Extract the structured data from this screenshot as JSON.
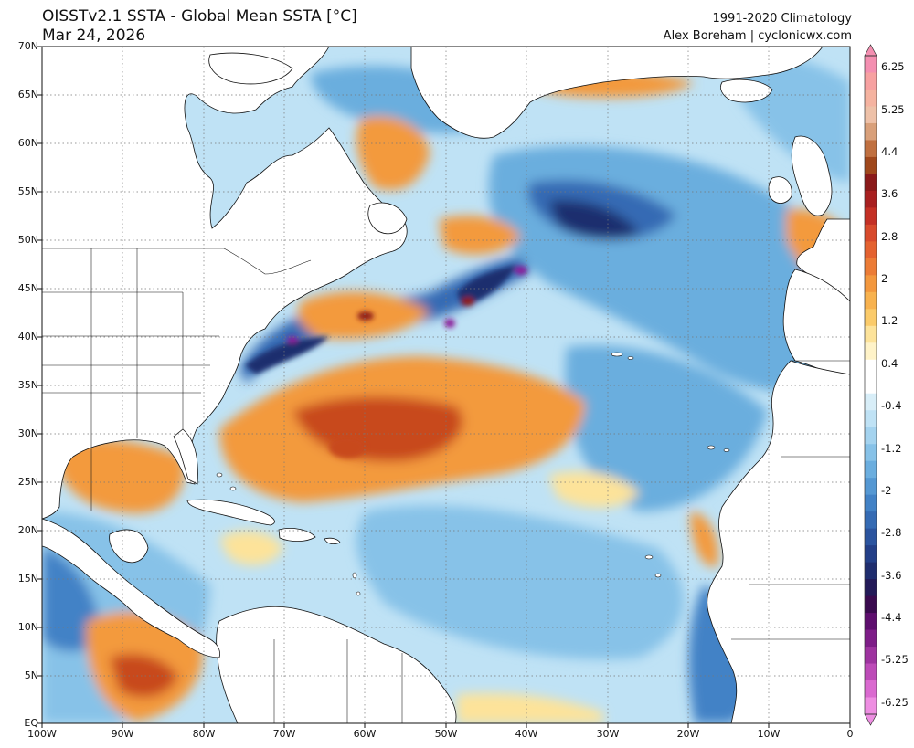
{
  "title": {
    "line1": "OISSTv2.1 SSTA - Global Mean SSTA [°C]",
    "line2": "Mar 24, 2026"
  },
  "credit": {
    "line1": "1991-2020 Climatology",
    "line2": "Alex Boreham | cyclonicwx.com"
  },
  "axes": {
    "lat_labels": [
      "70N",
      "65N",
      "60N",
      "55N",
      "50N",
      "45N",
      "40N",
      "35N",
      "30N",
      "25N",
      "20N",
      "15N",
      "10N",
      "5N",
      "EQ"
    ],
    "lon_labels": [
      "100W",
      "90W",
      "80W",
      "70W",
      "60W",
      "50W",
      "40W",
      "30W",
      "20W",
      "10W",
      "0"
    ]
  },
  "colorbar": {
    "labels": [
      "6.25",
      "5.25",
      "4.4",
      "3.6",
      "2.8",
      "2",
      "1.2",
      "0.4",
      "-0.4",
      "-1.2",
      "-2",
      "-2.8",
      "-3.6",
      "-4.4",
      "-5.25",
      "-6.25"
    ],
    "colors": [
      "#f48fb1",
      "#f7a1a1",
      "#f5b3a0",
      "#eec1a8",
      "#d9a07a",
      "#c07040",
      "#a0481c",
      "#8b1a1a",
      "#a82020",
      "#c43025",
      "#d84a2c",
      "#e46230",
      "#ec7c36",
      "#f3983e",
      "#f8b24e",
      "#fbcb6a",
      "#fde39a",
      "#fff3c8",
      "#ffffff",
      "#ffffff",
      "#d8eef8",
      "#bfe2f5",
      "#a4d3ef",
      "#87c2e8",
      "#6baedf",
      "#5598d3",
      "#4282c6",
      "#356bb4",
      "#2b549f",
      "#233f88",
      "#1f2d6e",
      "#231a58",
      "#3a0a4f",
      "#5e0e6e",
      "#7e1d88",
      "#9e33a0",
      "#bd4bb8",
      "#da6ad0",
      "#ee8ee2"
    ],
    "palette": {
      "warm_light": "#fde39a",
      "warm_mid": "#f39a3e",
      "warm_dark": "#c84a1f",
      "warm_deep": "#8e1a14",
      "cool_light": "#bfe2f5",
      "cool_mid": "#6aaede",
      "cool_dark": "#356bb4",
      "cool_deep": "#1f2d6e",
      "extreme_neg": "#8a1a9a",
      "land": "#ffffff"
    }
  }
}
